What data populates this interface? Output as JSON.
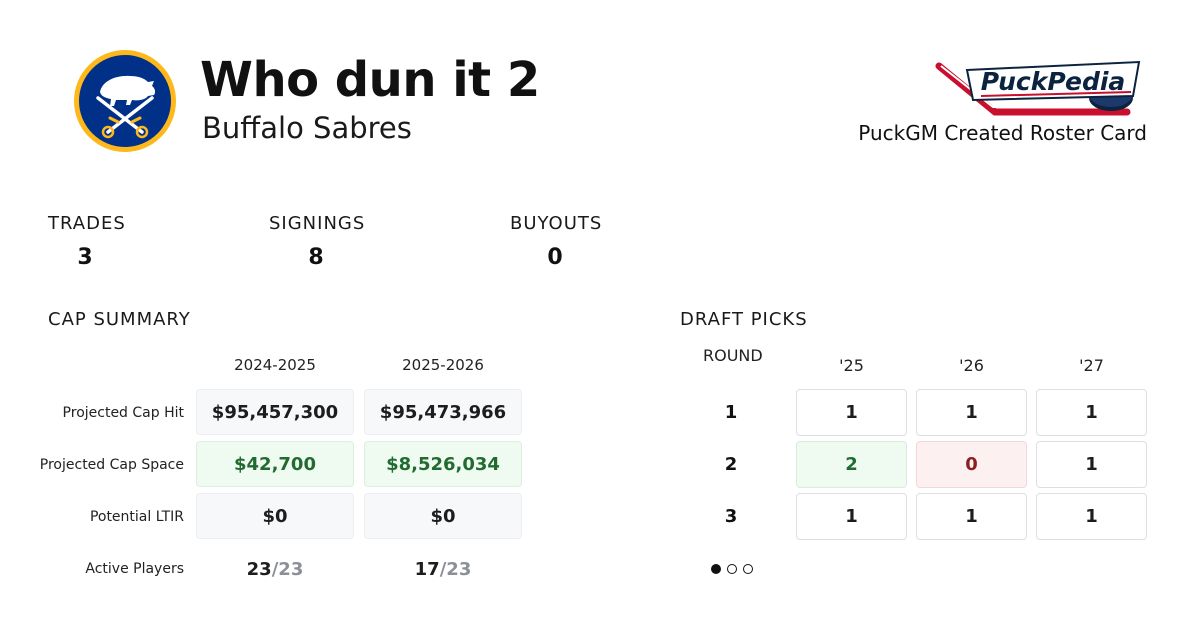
{
  "header": {
    "title": "Who dun it 2",
    "team": "Buffalo Sabres",
    "brand_name": "PuckPedia",
    "caption": "PuckGM Created Roster Card"
  },
  "stats": [
    {
      "label": "TRADES",
      "value": "3"
    },
    {
      "label": "SIGNINGS",
      "value": "8"
    },
    {
      "label": "BUYOUTS",
      "value": "0"
    }
  ],
  "cap_summary": {
    "title": "CAP SUMMARY",
    "seasons": [
      "2024-2025",
      "2025-2026"
    ],
    "rows": [
      {
        "label": "Projected Cap Hit",
        "values": [
          "$95,457,300",
          "$95,473,966"
        ]
      },
      {
        "label": "Projected Cap Space",
        "values": [
          "$42,700",
          "$8,526,034"
        ]
      },
      {
        "label": "Potential LTIR",
        "values": [
          "$0",
          "$0"
        ]
      }
    ],
    "active_players": {
      "label": "Active Players",
      "values": [
        {
          "count": "23",
          "max": "/23"
        },
        {
          "count": "17",
          "max": "/23"
        }
      ]
    }
  },
  "draft_picks": {
    "title": "DRAFT PICKS",
    "round_label": "ROUND",
    "years": [
      "'25",
      "'26",
      "'27"
    ],
    "rounds": [
      {
        "round": "1",
        "picks": [
          "1",
          "1",
          "1"
        ]
      },
      {
        "round": "2",
        "picks": [
          "2",
          "0",
          "1"
        ]
      },
      {
        "round": "3",
        "picks": [
          "1",
          "1",
          "1"
        ]
      }
    ]
  },
  "pager": {
    "pages": 3,
    "active": 0
  },
  "colors": {
    "sabres_navy": "#003087",
    "sabres_gold": "#FFB81C",
    "positive_green": "#226b30",
    "negative_red": "#8a1f1f"
  },
  "icons": {
    "team_logo": "buffalo-sabres-logo",
    "brand_logo": "puckpedia-logo"
  }
}
